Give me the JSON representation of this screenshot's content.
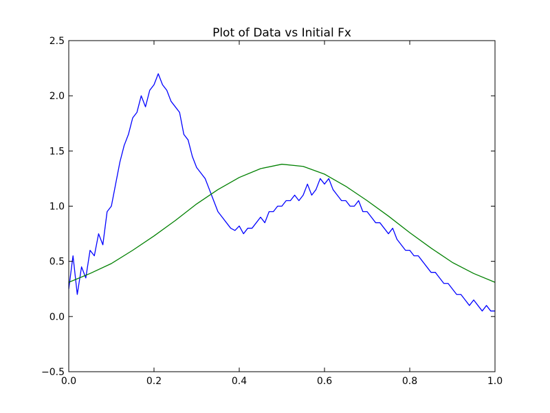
{
  "chart_data": {
    "type": "line",
    "title": "Plot of Data vs Initial Fx",
    "xlabel": "",
    "ylabel": "",
    "xlim": [
      0.0,
      1.0
    ],
    "ylim": [
      -0.5,
      2.5
    ],
    "xticks": [
      0.0,
      0.2,
      0.4,
      0.6,
      0.8,
      1.0
    ],
    "xtick_labels": [
      "0.0",
      "0.2",
      "0.4",
      "0.6",
      "0.8",
      "1.0"
    ],
    "yticks": [
      -0.5,
      0.0,
      0.5,
      1.0,
      1.5,
      2.0,
      2.5
    ],
    "ytick_labels": [
      "−0.5",
      "0.0",
      "0.5",
      "1.0",
      "1.5",
      "2.0",
      "2.5"
    ],
    "grid": false,
    "legend": "none",
    "series": [
      {
        "color": "#0000ff",
        "x": [
          0.0,
          0.01,
          0.02,
          0.03,
          0.04,
          0.05,
          0.06,
          0.07,
          0.08,
          0.09,
          0.1,
          0.11,
          0.12,
          0.13,
          0.14,
          0.15,
          0.16,
          0.17,
          0.18,
          0.19,
          0.2,
          0.21,
          0.22,
          0.23,
          0.24,
          0.25,
          0.26,
          0.27,
          0.28,
          0.29,
          0.3,
          0.31,
          0.32,
          0.33,
          0.34,
          0.35,
          0.36,
          0.37,
          0.38,
          0.39,
          0.4,
          0.41,
          0.42,
          0.43,
          0.44,
          0.45,
          0.46,
          0.47,
          0.48,
          0.49,
          0.5,
          0.51,
          0.52,
          0.53,
          0.54,
          0.55,
          0.56,
          0.57,
          0.58,
          0.59,
          0.6,
          0.61,
          0.62,
          0.63,
          0.64,
          0.65,
          0.66,
          0.67,
          0.68,
          0.69,
          0.7,
          0.71,
          0.72,
          0.73,
          0.74,
          0.75,
          0.76,
          0.77,
          0.78,
          0.79,
          0.8,
          0.81,
          0.82,
          0.83,
          0.84,
          0.85,
          0.86,
          0.87,
          0.88,
          0.89,
          0.9,
          0.91,
          0.92,
          0.93,
          0.94,
          0.95,
          0.96,
          0.97,
          0.98,
          0.99,
          1.0
        ],
        "y": [
          0.25,
          0.55,
          0.2,
          0.45,
          0.35,
          0.6,
          0.55,
          0.75,
          0.65,
          0.95,
          1.0,
          1.2,
          1.4,
          1.55,
          1.65,
          1.8,
          1.85,
          2.0,
          1.9,
          2.05,
          2.1,
          2.2,
          2.1,
          2.05,
          1.95,
          1.9,
          1.85,
          1.65,
          1.6,
          1.45,
          1.35,
          1.3,
          1.25,
          1.15,
          1.05,
          0.95,
          0.9,
          0.85,
          0.8,
          0.78,
          0.82,
          0.75,
          0.8,
          0.8,
          0.85,
          0.9,
          0.85,
          0.95,
          0.95,
          1.0,
          1.0,
          1.05,
          1.05,
          1.1,
          1.05,
          1.1,
          1.2,
          1.1,
          1.15,
          1.25,
          1.2,
          1.25,
          1.15,
          1.1,
          1.05,
          1.05,
          1.0,
          1.0,
          1.05,
          0.95,
          0.95,
          0.9,
          0.85,
          0.85,
          0.8,
          0.75,
          0.8,
          0.7,
          0.65,
          0.6,
          0.6,
          0.55,
          0.55,
          0.5,
          0.45,
          0.4,
          0.4,
          0.35,
          0.3,
          0.3,
          0.25,
          0.2,
          0.2,
          0.15,
          0.1,
          0.15,
          0.1,
          0.05,
          0.1,
          0.05,
          0.05
        ]
      },
      {
        "color": "#008000",
        "x": [
          0.0,
          0.05,
          0.1,
          0.15,
          0.2,
          0.25,
          0.3,
          0.35,
          0.4,
          0.45,
          0.5,
          0.55,
          0.6,
          0.65,
          0.7,
          0.75,
          0.8,
          0.85,
          0.9,
          0.95,
          1.0
        ],
        "y": [
          0.31,
          0.39,
          0.48,
          0.6,
          0.73,
          0.87,
          1.02,
          1.15,
          1.26,
          1.34,
          1.38,
          1.36,
          1.29,
          1.18,
          1.05,
          0.91,
          0.76,
          0.62,
          0.49,
          0.39,
          0.31
        ]
      }
    ]
  }
}
